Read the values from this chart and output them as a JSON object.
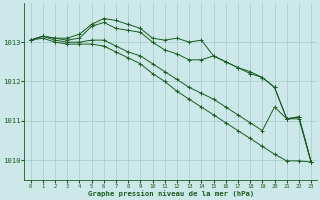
{
  "title": "Graphe pression niveau de la mer (hPa)",
  "background_color": "#cce8e8",
  "grid_color": "#aacece",
  "line_color": "#1a5c20",
  "xlim": [
    -0.5,
    23.5
  ],
  "ylim": [
    1009.5,
    1014.0
  ],
  "yticks": [
    1010,
    1011,
    1012,
    1013
  ],
  "xticks": [
    0,
    1,
    2,
    3,
    4,
    5,
    6,
    7,
    8,
    9,
    10,
    11,
    12,
    13,
    14,
    15,
    16,
    17,
    18,
    19,
    20,
    21,
    22,
    23
  ],
  "series": [
    [
      1013.05,
      1013.15,
      1013.1,
      1013.1,
      1013.2,
      1013.45,
      1013.6,
      1013.55,
      1013.45,
      1013.35,
      1013.1,
      1013.05,
      1013.1,
      1013.0,
      1013.05,
      1012.65,
      1012.5,
      1012.35,
      1012.25,
      1012.1,
      1011.85,
      1011.05,
      1011.1,
      1009.95
    ],
    [
      1013.05,
      1013.15,
      1013.1,
      1013.05,
      1013.1,
      1013.4,
      1013.5,
      1013.35,
      1013.3,
      1013.25,
      1013.0,
      1012.8,
      1012.7,
      1012.55,
      1012.55,
      1012.65,
      1012.5,
      1012.35,
      1012.2,
      1012.1,
      1011.85,
      1011.05,
      1011.1,
      1009.95
    ],
    [
      1013.05,
      1013.15,
      1013.05,
      1013.0,
      1013.0,
      1013.05,
      1013.05,
      1012.9,
      1012.75,
      1012.65,
      1012.45,
      1012.25,
      1012.05,
      1011.85,
      1011.7,
      1011.55,
      1011.35,
      1011.15,
      1010.95,
      1010.75,
      1011.35,
      1011.05,
      1011.05,
      1009.95
    ],
    [
      1013.05,
      1013.1,
      1013.0,
      1012.95,
      1012.95,
      1012.95,
      1012.9,
      1012.75,
      1012.6,
      1012.45,
      1012.2,
      1012.0,
      1011.75,
      1011.55,
      1011.35,
      1011.15,
      1010.95,
      1010.75,
      1010.55,
      1010.35,
      1010.15,
      1009.98,
      1009.98,
      1009.95
    ]
  ]
}
